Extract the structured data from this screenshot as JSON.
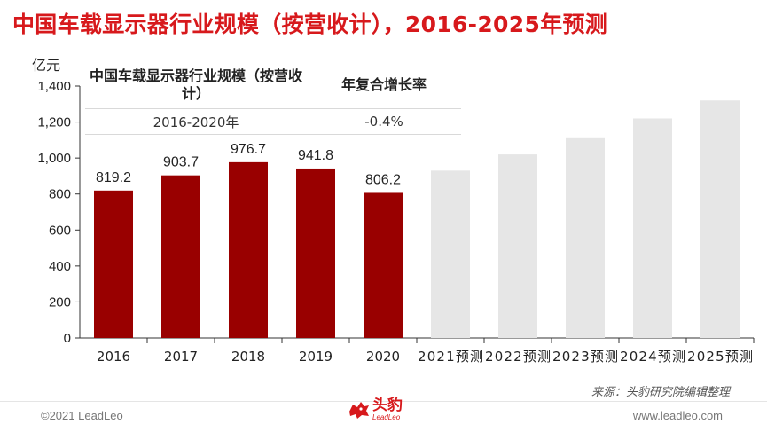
{
  "title": "中国车载显示器行业规模（按营收计），2016-2025年预测",
  "unit_label": "亿元",
  "cagr_table": {
    "header_metric": "中国车载显示器行业规模（按营收计）",
    "header_rate": "年复合增长率",
    "period": "2016-2020年",
    "rate": "-0.4%"
  },
  "source": "来源：头豹研究院编辑整理",
  "footer": {
    "copyright": "©2021 LeadLeo",
    "logo_cn": "头豹",
    "logo_en": "LeadLeo",
    "website": "www.leadleo.com"
  },
  "colors": {
    "title": "#d7191c",
    "historical_bar": "#990000",
    "forecast_bar": "#e6e6e6",
    "brand": "#d7191c"
  },
  "chart_data": {
    "type": "bar",
    "categories": [
      "2016",
      "2017",
      "2018",
      "2019",
      "2020",
      "2021预测",
      "2022预测",
      "2023预测",
      "2024预测",
      "2025预测"
    ],
    "values": [
      819.2,
      903.7,
      976.7,
      941.8,
      806.2,
      930,
      1020,
      1110,
      1220,
      1320
    ],
    "data_labels": [
      "819.2",
      "903.7",
      "976.7",
      "941.8",
      "806.2",
      "",
      "",
      "",
      "",
      ""
    ],
    "forecast": [
      false,
      false,
      false,
      false,
      false,
      true,
      true,
      true,
      true,
      true
    ],
    "ylim": [
      0,
      1400
    ],
    "yticks": [
      0,
      200,
      400,
      600,
      800,
      1000,
      1200,
      1400
    ],
    "ytick_labels": [
      "0",
      "200",
      "400",
      "600",
      "800",
      "1,000",
      "1,200",
      "1,400"
    ],
    "ylabel": "亿元",
    "xlabel": "",
    "grid": false,
    "legend": "none"
  }
}
